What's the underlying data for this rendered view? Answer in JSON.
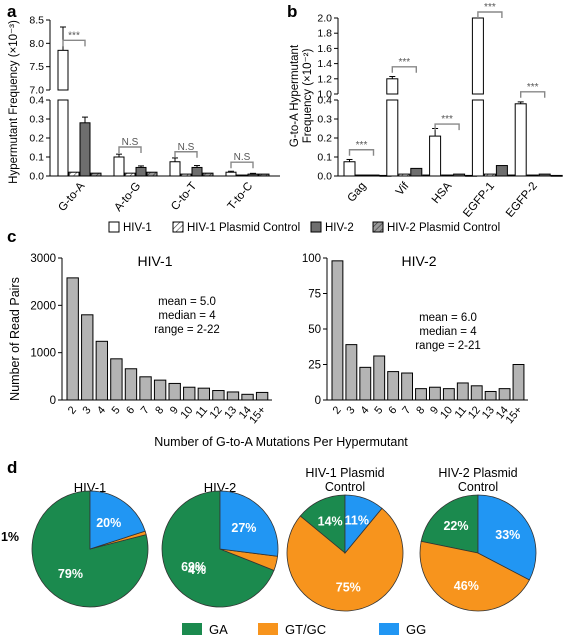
{
  "panel_labels": {
    "a": "a",
    "b": "b",
    "c": "c",
    "d": "d"
  },
  "colors": {
    "hiv1": "#ffffff",
    "hiv2": "#6e6e6e",
    "plasmid_hatch": "#555555",
    "bar_c": "#b4b4b4",
    "GA": "#1b8a4e",
    "GTGC": "#f7941d",
    "GG": "#2196f3"
  },
  "legend_ab": [
    {
      "label": "HIV-1",
      "style": "white"
    },
    {
      "label": "HIV-1 Plasmid Control",
      "style": "hatch-white"
    },
    {
      "label": "HIV-2",
      "style": "gray"
    },
    {
      "label": "HIV-2 Plasmid Control",
      "style": "hatch-gray"
    }
  ],
  "legend_d": [
    {
      "label": "GA",
      "color": "#1b8a4e"
    },
    {
      "label": "GT/GC",
      "color": "#f7941d"
    },
    {
      "label": "GG",
      "color": "#2196f3"
    }
  ],
  "chart_data": [
    {
      "panel": "a",
      "type": "bar",
      "ylabel": "Hypermutant Frequency (×10⁻³)",
      "categories": [
        "G-to-A",
        "A-to-G",
        "C-to-T",
        "T-to-C"
      ],
      "series": [
        {
          "name": "HIV-1",
          "values": [
            7.85,
            0.1,
            0.075,
            0.02
          ]
        },
        {
          "name": "HIV-1 Plasmid Control",
          "values": [
            0.02,
            0.015,
            0.01,
            0.005
          ]
        },
        {
          "name": "HIV-2",
          "values": [
            0.28,
            0.045,
            0.045,
            0.01
          ]
        },
        {
          "name": "HIV-2 Plasmid Control",
          "values": [
            0.015,
            0.02,
            0.015,
            0.01
          ]
        }
      ],
      "errors": [
        [
          0.5,
          0.015,
          0.02,
          0.005
        ],
        [
          0,
          0,
          0,
          0
        ],
        [
          0.03,
          0.008,
          0.01,
          0.004
        ],
        [
          0,
          0,
          0,
          0
        ]
      ],
      "axis_break": {
        "lower": [
          0,
          0.4
        ],
        "upper": [
          7,
          8.5
        ]
      },
      "yticks_lower": [
        "0.0",
        "0.1",
        "0.2",
        "0.3",
        "0.4"
      ],
      "yticks_upper": [
        "7.0",
        "7.5",
        "8.0",
        "8.5"
      ],
      "significance": [
        "***",
        "N.S",
        "N.S",
        "N.S"
      ]
    },
    {
      "panel": "b",
      "type": "bar",
      "ylabel": "G-to-A Hypermutant Frequency (×10⁻²)",
      "categories": [
        "Gag",
        "Vif",
        "HSA",
        "EGFP-1",
        "EGFP-2"
      ],
      "series": [
        {
          "name": "HIV-1",
          "values": [
            0.075,
            1.2,
            0.21,
            2.0,
            0.38
          ]
        },
        {
          "name": "HIV-1 Plasmid Control",
          "values": [
            0.005,
            0.01,
            0.005,
            0.01,
            0.005
          ]
        },
        {
          "name": "HIV-2",
          "values": [
            0.005,
            0.04,
            0.01,
            0.055,
            0.01
          ]
        },
        {
          "name": "HIV-2 Plasmid Control",
          "values": [
            0.003,
            0.005,
            0.003,
            0.005,
            0.003
          ]
        }
      ],
      "errors": [
        0.012,
        0.03,
        0.04,
        0.05,
        0.01
      ],
      "axis_break": {
        "lower": [
          0,
          0.4
        ],
        "upper": [
          1,
          2
        ]
      },
      "yticks_lower": [
        "0.0",
        "0.1",
        "0.2",
        "0.3",
        "0.4"
      ],
      "yticks_upper": [
        "1.0",
        "1.2",
        "1.4",
        "1.6",
        "1.8",
        "2.0"
      ],
      "significance": [
        "***",
        "***",
        "***",
        "***",
        "***"
      ]
    },
    {
      "panel": "c",
      "type": "bar",
      "title": "HIV-1",
      "ylabel": "Number of Read Pairs",
      "xlabel": "Number of G-to-A Mutations Per Hypermutant",
      "categories": [
        "2",
        "3",
        "4",
        "5",
        "6",
        "7",
        "8",
        "9",
        "10",
        "11",
        "12",
        "13",
        "14",
        "15+"
      ],
      "values": [
        2580,
        1800,
        1240,
        870,
        660,
        490,
        420,
        350,
        270,
        250,
        200,
        170,
        120,
        160
      ],
      "ylim": [
        0,
        3000
      ],
      "yticks": [
        "0",
        "1000",
        "2000",
        "3000"
      ],
      "stats": [
        "mean = 5.0",
        "median = 4",
        "range = 2-22"
      ]
    },
    {
      "panel": "c",
      "type": "bar",
      "title": "HIV-2",
      "categories": [
        "2",
        "3",
        "4",
        "5",
        "6",
        "7",
        "8",
        "9",
        "10",
        "11",
        "12",
        "13",
        "14",
        "15+"
      ],
      "values": [
        98,
        39,
        23,
        31,
        20,
        19,
        8,
        9,
        8,
        12,
        10,
        6,
        8,
        25
      ],
      "ylim": [
        0,
        100
      ],
      "yticks": [
        "0",
        "25",
        "50",
        "75",
        "100"
      ],
      "stats": [
        "mean = 6.0",
        "median = 4",
        "range = 2-21"
      ]
    },
    {
      "panel": "d",
      "type": "pie",
      "title": "HIV-1",
      "slices": [
        {
          "label": "GA",
          "value": 79,
          "text": "79%"
        },
        {
          "label": "GT/GC",
          "value": 1,
          "text": "1%"
        },
        {
          "label": "GG",
          "value": 20,
          "text": "20%"
        }
      ]
    },
    {
      "panel": "d",
      "type": "pie",
      "title": "HIV-2",
      "slices": [
        {
          "label": "GA",
          "value": 69,
          "text": "69%"
        },
        {
          "label": "GT/GC",
          "value": 4,
          "text": "4%"
        },
        {
          "label": "GG",
          "value": 27,
          "text": "27%"
        }
      ]
    },
    {
      "panel": "d",
      "type": "pie",
      "title": "HIV-1 Plasmid Control",
      "slices": [
        {
          "label": "GA",
          "value": 14,
          "text": "14%"
        },
        {
          "label": "GT/GC",
          "value": 75,
          "text": "75%"
        },
        {
          "label": "GG",
          "value": 11,
          "text": "11%"
        }
      ]
    },
    {
      "panel": "d",
      "type": "pie",
      "title": "HIV-2 Plasmid Control",
      "slices": [
        {
          "label": "GA",
          "value": 22,
          "text": "22%"
        },
        {
          "label": "GT/GC",
          "value": 46,
          "text": "46%"
        },
        {
          "label": "GG",
          "value": 33,
          "text": "33%"
        }
      ]
    }
  ]
}
